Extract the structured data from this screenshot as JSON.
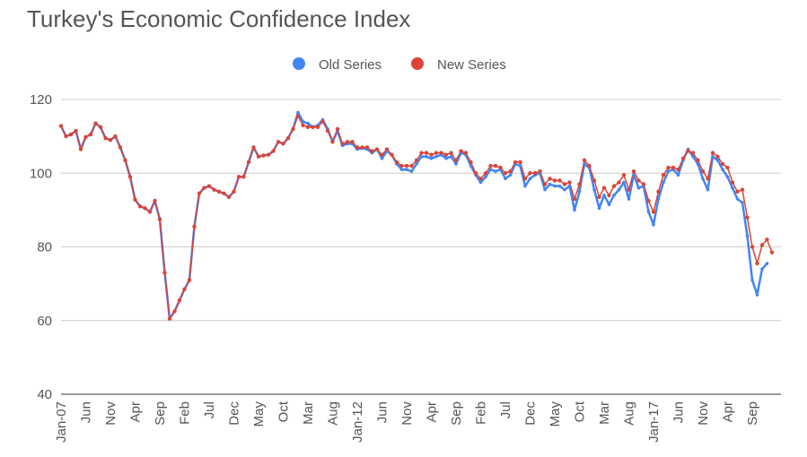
{
  "chart_data": {
    "type": "line",
    "title": "Turkey's Economic Confidence Index",
    "xlabel": "",
    "ylabel": "",
    "ylim": [
      40,
      120
    ],
    "yticks": [
      "40",
      "60",
      "80",
      "100",
      "120"
    ],
    "grid": "horizontal",
    "legend_position": "top",
    "xtick_labels": [
      "Jan-07",
      "Jun",
      "Nov",
      "Apr",
      "Sep",
      "Feb",
      "Jul",
      "Dec",
      "May",
      "Oct",
      "Mar",
      "Aug",
      "Jan-12",
      "Jun",
      "Nov",
      "Apr",
      "Sep",
      "Feb",
      "Jul",
      "Dec",
      "May",
      "Oct",
      "Mar",
      "Aug",
      "Jan-17",
      "Jun",
      "Nov",
      "Apr",
      "Sep"
    ],
    "x_start": "Jan-2007",
    "x_step": "1 month",
    "series": [
      {
        "name": "Old Series",
        "color": "#4285f4",
        "values": [
          112.8,
          110.0,
          110.5,
          111.5,
          106.5,
          109.8,
          110.5,
          113.5,
          112.5,
          109.5,
          109.0,
          110.0,
          107.0,
          103.5,
          99.0,
          92.8,
          91.0,
          90.5,
          89.5,
          92.5,
          87.5,
          73.0,
          60.5,
          62.5,
          65.5,
          68.5,
          71.0,
          85.5,
          94.5,
          96.0,
          96.5,
          95.5,
          95.0,
          94.5,
          93.5,
          95.0,
          99.0,
          99.0,
          103.0,
          107.0,
          104.5,
          104.8,
          105.0,
          106.0,
          108.5,
          108.0,
          109.5,
          112.0,
          116.5,
          114.0,
          113.5,
          112.5,
          113.0,
          114.5,
          112.0,
          108.5,
          111.5,
          107.5,
          108.0,
          108.0,
          106.5,
          106.8,
          106.5,
          105.5,
          106.5,
          104.0,
          106.0,
          105.0,
          102.5,
          101.0,
          101.0,
          100.5,
          102.5,
          104.5,
          104.5,
          104.0,
          104.5,
          105.0,
          104.0,
          104.5,
          102.5,
          105.5,
          105.0,
          102.0,
          99.5,
          97.5,
          99.0,
          101.0,
          100.5,
          101.0,
          98.5,
          99.5,
          102.5,
          102.0,
          96.5,
          98.5,
          99.5,
          100.0,
          95.5,
          97.0,
          96.5,
          96.5,
          95.5,
          96.5,
          90.0,
          95.0,
          102.5,
          101.5,
          95.5,
          90.5,
          94.0,
          91.5,
          94.0,
          95.5,
          97.5,
          93.0,
          99.5,
          96.0,
          96.5,
          89.5,
          86.0,
          93.0,
          97.5,
          100.5,
          101.0,
          99.5,
          103.5,
          106.5,
          104.5,
          102.5,
          98.5,
          95.5,
          104.5,
          103.5,
          101.0,
          99.0,
          96.0,
          93.0,
          92.0,
          83.0,
          71.0,
          67.0,
          74.0,
          75.5
        ],
        "legend_label": "Old Series"
      },
      {
        "name": "New Series",
        "color": "#db4437",
        "values": [
          112.8,
          110.0,
          110.5,
          111.5,
          106.5,
          109.8,
          110.5,
          113.5,
          112.5,
          109.5,
          109.0,
          110.0,
          107.0,
          103.5,
          99.0,
          92.8,
          91.0,
          90.5,
          89.5,
          92.5,
          87.5,
          73.0,
          60.5,
          62.5,
          65.5,
          68.5,
          71.0,
          85.5,
          94.5,
          96.0,
          96.5,
          95.5,
          95.0,
          94.5,
          93.5,
          95.0,
          99.0,
          99.0,
          103.0,
          107.0,
          104.5,
          104.8,
          105.0,
          106.0,
          108.5,
          108.0,
          109.5,
          112.0,
          115.5,
          113.0,
          112.5,
          112.5,
          112.5,
          114.0,
          111.5,
          108.5,
          112.0,
          108.0,
          108.5,
          108.5,
          107.0,
          107.0,
          107.0,
          106.0,
          106.5,
          105.0,
          106.5,
          105.0,
          103.0,
          102.0,
          102.0,
          102.0,
          103.5,
          105.5,
          105.5,
          105.0,
          105.5,
          105.5,
          105.0,
          105.5,
          103.5,
          106.0,
          105.5,
          103.0,
          100.0,
          98.5,
          100.0,
          102.0,
          102.0,
          101.5,
          100.0,
          100.5,
          103.0,
          103.0,
          98.5,
          100.0,
          100.0,
          100.5,
          97.0,
          98.5,
          98.0,
          98.0,
          97.0,
          97.5,
          93.0,
          97.0,
          103.5,
          102.0,
          98.0,
          93.5,
          96.0,
          94.0,
          96.5,
          97.5,
          99.5,
          95.5,
          100.5,
          98.0,
          97.0,
          92.5,
          89.5,
          95.0,
          99.5,
          101.5,
          101.5,
          101.0,
          104.0,
          106.0,
          105.5,
          103.5,
          100.5,
          98.5,
          105.5,
          104.5,
          102.5,
          101.5,
          97.5,
          95.0,
          95.5,
          88.0,
          80.0,
          75.5,
          80.5,
          82.0,
          78.5
        ]
      }
    ]
  }
}
